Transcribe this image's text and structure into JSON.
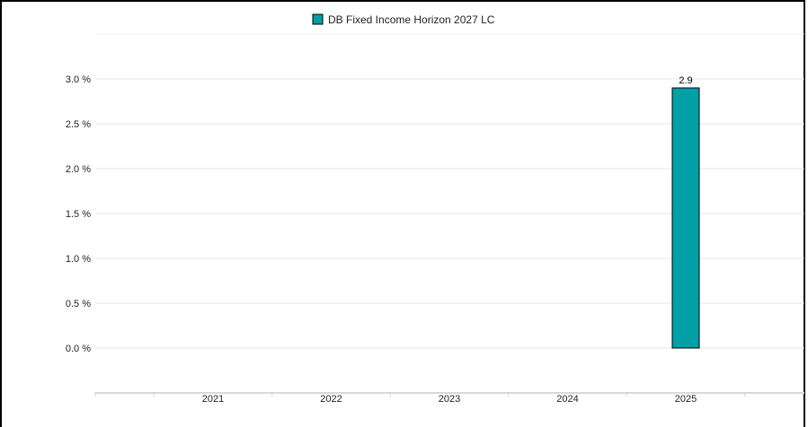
{
  "chart_data": {
    "type": "bar",
    "categories": [
      "2021",
      "2022",
      "2023",
      "2024",
      "2025"
    ],
    "series": [
      {
        "name": "DB Fixed Income Horizon 2027 LC",
        "values": [
          null,
          null,
          null,
          null,
          2.9
        ],
        "data_labels": [
          "",
          "",
          "",
          "",
          "2.9"
        ],
        "color": "#00a0a6"
      }
    ],
    "ylim": [
      0,
      3.0
    ],
    "y_ticks": [
      "0.0 %",
      "0.5 %",
      "1.0 %",
      "1.5 %",
      "2.0 %",
      "2.5 %",
      "3.0 %"
    ],
    "y_tick_values": [
      0,
      0.5,
      1.0,
      1.5,
      2.0,
      2.5,
      3.0
    ],
    "grid": true,
    "legend_position": "top-center"
  }
}
